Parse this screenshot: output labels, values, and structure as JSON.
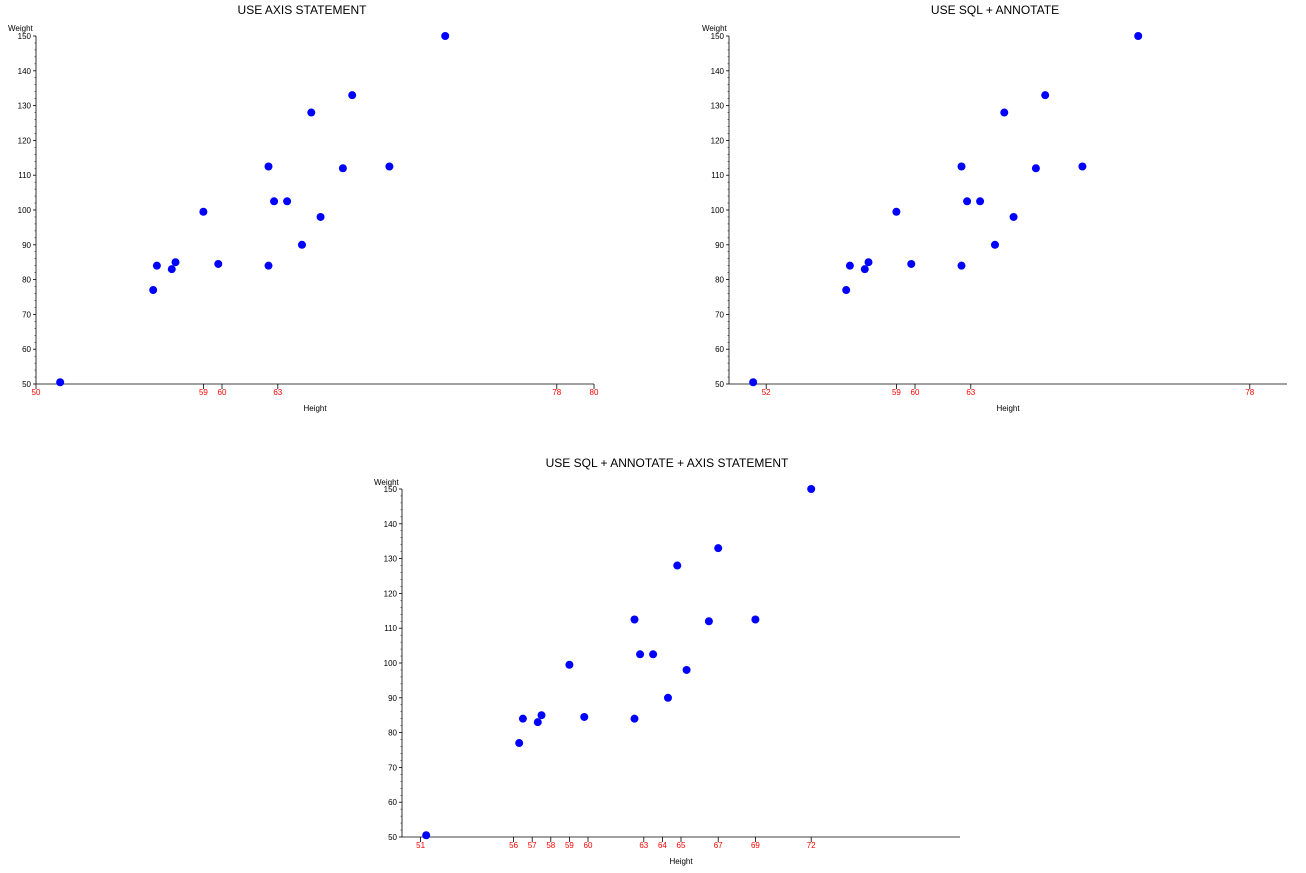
{
  "colors": {
    "marker": "#0000ff",
    "tick_label_x": "#ff0000",
    "axis": "#000000"
  },
  "chart_data": [
    {
      "type": "scatter",
      "title": "USE AXIS STATEMENT",
      "xlabel": "Height",
      "ylabel": "Weight",
      "xlim": [
        50,
        80
      ],
      "ylim": [
        50,
        150
      ],
      "xticks": [
        50,
        59,
        60,
        63,
        78,
        80
      ],
      "yticks": [
        50,
        60,
        70,
        80,
        90,
        100,
        110,
        120,
        130,
        140,
        150
      ],
      "grid": false,
      "x": [
        51.3,
        56.3,
        56.5,
        57.3,
        57.5,
        59.0,
        59.8,
        62.5,
        62.5,
        62.8,
        63.5,
        64.3,
        64.8,
        65.3,
        66.5,
        67.0,
        69.0,
        72.0
      ],
      "y": [
        50.5,
        77.0,
        84.0,
        83.0,
        85.0,
        99.5,
        84.5,
        112.5,
        84.0,
        102.5,
        102.5,
        90.0,
        128.0,
        98.0,
        112.0,
        133.0,
        112.5,
        150.0
      ]
    },
    {
      "type": "scatter",
      "title": "USE SQL + ANNOTATE",
      "xlabel": "Height",
      "ylabel": "Weight",
      "xlim": [
        50,
        80
      ],
      "ylim": [
        50,
        150
      ],
      "xticks": [
        52,
        59,
        60,
        63,
        78
      ],
      "yticks": [
        50,
        60,
        70,
        80,
        90,
        100,
        110,
        120,
        130,
        140,
        150
      ],
      "grid": false,
      "x": [
        51.3,
        56.3,
        56.5,
        57.3,
        57.5,
        59.0,
        59.8,
        62.5,
        62.5,
        62.8,
        63.5,
        64.3,
        64.8,
        65.3,
        66.5,
        67.0,
        69.0,
        72.0
      ],
      "y": [
        50.5,
        77.0,
        84.0,
        83.0,
        85.0,
        99.5,
        84.5,
        112.5,
        84.0,
        102.5,
        102.5,
        90.0,
        128.0,
        98.0,
        112.0,
        133.0,
        112.5,
        150.0
      ]
    },
    {
      "type": "scatter",
      "title": "USE SQL + ANNOTATE + AXIS STATEMENT",
      "xlabel": "Height",
      "ylabel": "Weight",
      "xlim": [
        50,
        80
      ],
      "ylim": [
        50,
        150
      ],
      "xticks": [
        51,
        56,
        57,
        58,
        59,
        60,
        63,
        64,
        65,
        67,
        69,
        72
      ],
      "yticks": [
        50,
        60,
        70,
        80,
        90,
        100,
        110,
        120,
        130,
        140,
        150
      ],
      "grid": false,
      "x": [
        51.3,
        56.3,
        56.5,
        57.3,
        57.5,
        59.0,
        59.8,
        62.5,
        62.5,
        62.8,
        63.5,
        64.3,
        64.8,
        65.3,
        66.5,
        67.0,
        69.0,
        72.0
      ],
      "y": [
        50.5,
        77.0,
        84.0,
        83.0,
        85.0,
        99.5,
        84.5,
        112.5,
        84.0,
        102.5,
        102.5,
        90.0,
        128.0,
        98.0,
        112.0,
        133.0,
        112.5,
        150.0
      ]
    }
  ]
}
